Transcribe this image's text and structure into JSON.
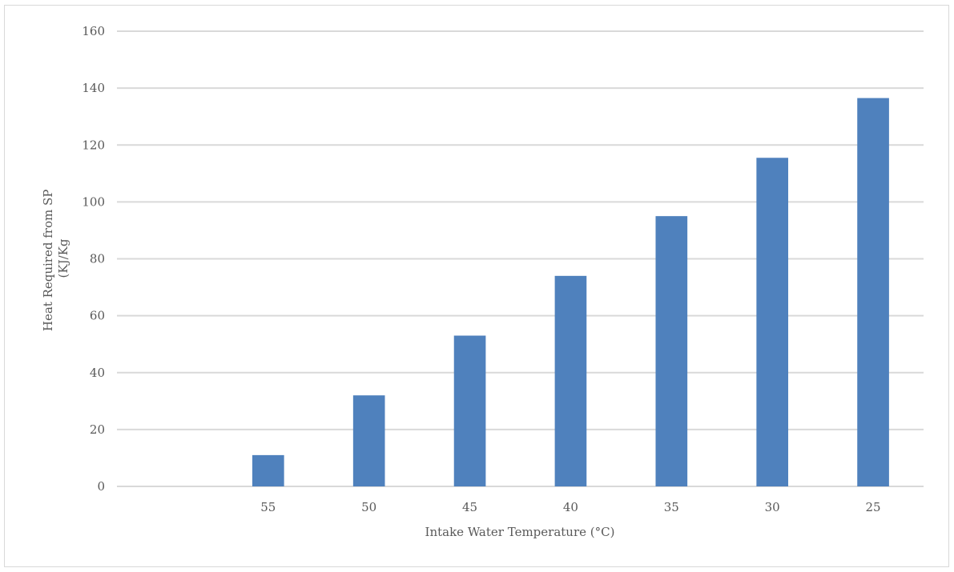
{
  "chart_data": {
    "type": "bar",
    "categories": [
      "",
      "55",
      "50",
      "45",
      "40",
      "35",
      "30",
      "25"
    ],
    "values": [
      0,
      11,
      32,
      53,
      74,
      95,
      115.5,
      136.5
    ],
    "xlabel": "Intake Water Temperature (°C)",
    "ylabel_lines": [
      "Heat Required from SP",
      "(KJ/Kg"
    ],
    "ylim": [
      0,
      160
    ],
    "yticks": [
      0,
      20,
      40,
      60,
      80,
      100,
      120,
      140,
      160
    ],
    "grid": true,
    "legend": "none",
    "bar_color": "#4f81bd"
  }
}
